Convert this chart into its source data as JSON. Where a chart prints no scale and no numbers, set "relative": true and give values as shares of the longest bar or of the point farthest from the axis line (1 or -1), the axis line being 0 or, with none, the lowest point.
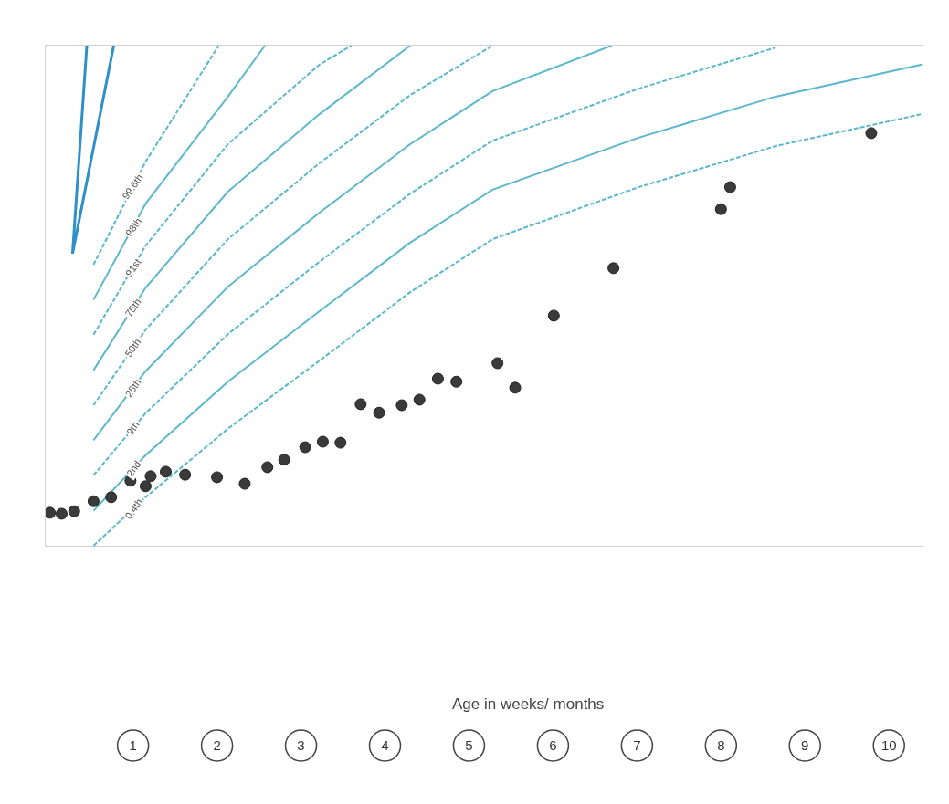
{
  "chart_data": {
    "type": "line",
    "relative": true,
    "xlabel": "Age in weeks/ months",
    "xlim": [
      -0.04,
      10.4
    ],
    "xticks": [
      1,
      2,
      3,
      4,
      5,
      6,
      7,
      8,
      9,
      10
    ],
    "grid": false,
    "legend": false,
    "series": [
      {
        "name": "99.6th",
        "color": "#5bb8cc",
        "line_style": "dashed",
        "x": [
          0.53,
          1.15,
          2.02
        ],
        "values": [
          0.562,
          0.768,
          1
        ]
      },
      {
        "name": "98th",
        "color": "#5bb8cc",
        "line_style": "solid",
        "x": [
          0.53,
          1.15,
          2.13,
          2.57
        ],
        "values": [
          0.492,
          0.684,
          0.898,
          1
        ]
      },
      {
        "name": "91st",
        "color": "#5bb8cc",
        "line_style": "dashed",
        "x": [
          0.53,
          1.15,
          2.13,
          3.22,
          3.6
        ],
        "values": [
          0.422,
          0.6,
          0.803,
          0.962,
          1
        ]
      },
      {
        "name": "75th",
        "color": "#5bb8cc",
        "line_style": "solid",
        "x": [
          0.53,
          1.15,
          2.13,
          3.22,
          4.3
        ],
        "values": [
          0.351,
          0.516,
          0.708,
          0.863,
          1
        ]
      },
      {
        "name": "50th",
        "color": "#5bb8cc",
        "line_style": "dashed",
        "x": [
          0.53,
          1.15,
          2.13,
          3.22,
          4.3,
          5.28
        ],
        "values": [
          0.281,
          0.432,
          0.613,
          0.765,
          0.901,
          1
        ]
      },
      {
        "name": "25th",
        "color": "#5bb8cc",
        "line_style": "solid",
        "x": [
          0.53,
          1.15,
          2.13,
          3.22,
          4.3,
          5.28,
          6.7
        ],
        "values": [
          0.211,
          0.349,
          0.518,
          0.666,
          0.803,
          0.909,
          1
        ]
      },
      {
        "name": "9th",
        "color": "#5bb8cc",
        "line_style": "dashed",
        "x": [
          0.53,
          1.15,
          2.13,
          3.22,
          4.3,
          5.28,
          7.02,
          8.65
        ],
        "values": [
          0.141,
          0.265,
          0.423,
          0.568,
          0.704,
          0.81,
          0.914,
          0.996
        ]
      },
      {
        "name": "2nd",
        "color": "#5bb8cc",
        "line_style": "solid",
        "x": [
          0.53,
          1.15,
          2.13,
          3.22,
          4.3,
          5.28,
          7.02,
          8.65,
          10.39
        ],
        "values": [
          0.07,
          0.181,
          0.328,
          0.469,
          0.606,
          0.712,
          0.816,
          0.898,
          0.962
        ]
      },
      {
        "name": "0.4th",
        "color": "#5bb8cc",
        "line_style": "dashed",
        "x": [
          0.53,
          1.15,
          2.13,
          3.22,
          4.3,
          5.28,
          7.02,
          8.65,
          10.39
        ],
        "values": [
          0,
          0.097,
          0.234,
          0.37,
          0.507,
          0.613,
          0.717,
          0.799,
          0.863
        ]
      },
      {
        "color": "#2f8fc8",
        "line_style": "solid",
        "x": [
          0.45,
          0.28,
          0.77
        ],
        "values": [
          1,
          0.584,
          1
        ]
      },
      {
        "type": "scatter",
        "marker": "circle",
        "color": "#3a3a3a",
        "x": [
          0.01,
          0.15,
          0.3,
          0.53,
          0.74,
          0.97,
          1.15,
          1.21,
          1.39,
          1.62,
          2.0,
          2.33,
          2.6,
          2.8,
          3.05,
          3.26,
          3.47,
          3.71,
          3.93,
          4.2,
          4.41,
          4.63,
          4.85,
          5.34,
          5.55,
          6.01,
          6.72,
          8.0,
          8.11,
          9.79
        ],
        "values": [
          0.066,
          0.064,
          0.069,
          0.089,
          0.097,
          0.13,
          0.119,
          0.139,
          0.148,
          0.142,
          0.137,
          0.124,
          0.157,
          0.172,
          0.197,
          0.208,
          0.206,
          0.283,
          0.266,
          0.281,
          0.292,
          0.334,
          0.328,
          0.365,
          0.316,
          0.46,
          0.555,
          0.673,
          0.717,
          0.825
        ]
      }
    ]
  }
}
